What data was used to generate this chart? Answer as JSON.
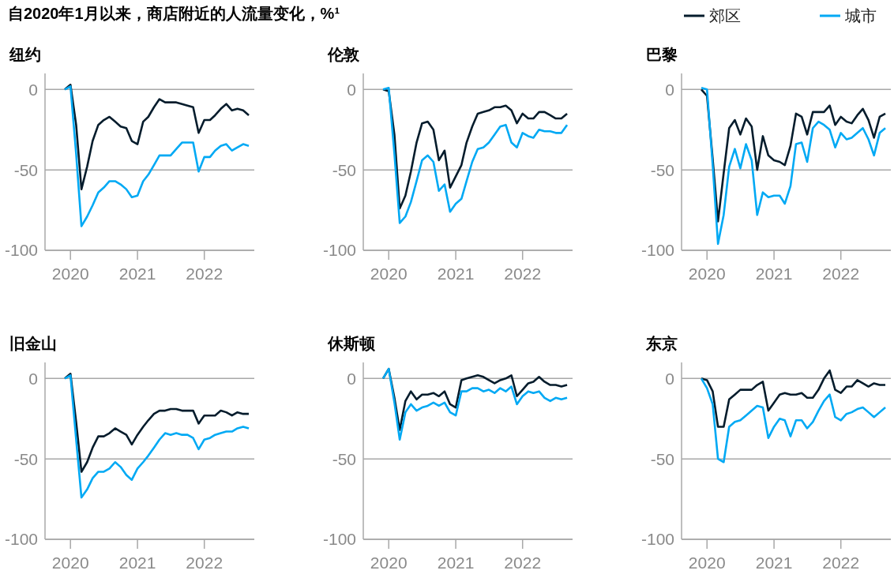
{
  "chart_data": [
    {
      "type": "other",
      "title": "自2020年1月以来，商店附近的人流量变化，%¹"
    },
    {
      "type": "line",
      "title": "纽约",
      "x": [
        "2019-12",
        "2020-01",
        "2020-02",
        "2020-03",
        "2020-04",
        "2020-05",
        "2020-06",
        "2020-07",
        "2020-08",
        "2020-09",
        "2020-10",
        "2020-11",
        "2020-12",
        "2021-01",
        "2021-02",
        "2021-03",
        "2021-04",
        "2021-05",
        "2021-06",
        "2021-07",
        "2021-08",
        "2021-09",
        "2021-10",
        "2021-11",
        "2021-12",
        "2022-01",
        "2022-02",
        "2022-03",
        "2022-04",
        "2022-05",
        "2022-06",
        "2022-07",
        "2022-08",
        "2022-09"
      ],
      "xlim": [
        "2019-08-15",
        "2022-10-01"
      ],
      "xticks": [
        "2020",
        "2021",
        "2022"
      ],
      "ylim": [
        -100,
        10
      ],
      "yticks": [
        0,
        -50,
        -100
      ],
      "grid": "y",
      "series": [
        {
          "color": "#051c2c",
          "values": [
            0,
            3,
            -22,
            -62,
            -48,
            -32,
            -22,
            -19,
            -17,
            -20,
            -23,
            -24,
            -32,
            -34,
            -20,
            -17,
            -11,
            -6,
            -8,
            -8,
            -8,
            -9,
            -10,
            -11,
            -27,
            -19,
            -19,
            -16,
            -12,
            -9,
            -13,
            -12,
            -13,
            -16
          ]
        },
        {
          "color": "#00a9f4",
          "values": [
            0,
            2,
            -40,
            -85,
            -79,
            -72,
            -64,
            -61,
            -57,
            -57,
            -59,
            -62,
            -67,
            -66,
            -57,
            -53,
            -47,
            -41,
            -41,
            -41,
            -37,
            -33,
            -33,
            -33,
            -51,
            -42,
            -42,
            -38,
            -35,
            -34,
            -38,
            -36,
            -34,
            -35
          ]
        }
      ]
    },
    {
      "type": "line",
      "title": "伦敦",
      "x": [
        "2019-12",
        "2020-01",
        "2020-02",
        "2020-03",
        "2020-04",
        "2020-05",
        "2020-06",
        "2020-07",
        "2020-08",
        "2020-09",
        "2020-10",
        "2020-11",
        "2020-12",
        "2021-01",
        "2021-02",
        "2021-03",
        "2021-04",
        "2021-05",
        "2021-06",
        "2021-07",
        "2021-08",
        "2021-09",
        "2021-10",
        "2021-11",
        "2021-12",
        "2022-01",
        "2022-02",
        "2022-03",
        "2022-04",
        "2022-05",
        "2022-06",
        "2022-07",
        "2022-08",
        "2022-09"
      ],
      "xlim": [
        "2019-08-15",
        "2022-10-01"
      ],
      "xticks": [
        "2020",
        "2021",
        "2022"
      ],
      "ylim": [
        -100,
        10
      ],
      "yticks": [
        0,
        -50,
        -100
      ],
      "grid": "y",
      "series": [
        {
          "color": "#051c2c",
          "values": [
            0,
            -1,
            -28,
            -74,
            -66,
            -51,
            -33,
            -21,
            -20,
            -25,
            -44,
            -38,
            -61,
            -54,
            -47,
            -33,
            -23,
            -15,
            -14,
            -13,
            -11,
            -11,
            -10,
            -13,
            -21,
            -15,
            -18,
            -18,
            -14,
            -14,
            -16,
            -18,
            -18,
            -15
          ]
        },
        {
          "color": "#00a9f4",
          "values": [
            0,
            1,
            -40,
            -83,
            -79,
            -70,
            -57,
            -44,
            -41,
            -45,
            -63,
            -59,
            -76,
            -71,
            -68,
            -57,
            -45,
            -37,
            -36,
            -33,
            -28,
            -23,
            -22,
            -33,
            -36,
            -27,
            -29,
            -30,
            -25,
            -26,
            -26,
            -27,
            -27,
            -22
          ]
        }
      ]
    },
    {
      "type": "line",
      "title": "巴黎",
      "legend": "top right",
      "x": [
        "2019-12",
        "2020-01",
        "2020-02",
        "2020-03",
        "2020-04",
        "2020-05",
        "2020-06",
        "2020-07",
        "2020-08",
        "2020-09",
        "2020-10",
        "2020-11",
        "2020-12",
        "2021-01",
        "2021-02",
        "2021-03",
        "2021-04",
        "2021-05",
        "2021-06",
        "2021-07",
        "2021-08",
        "2021-09",
        "2021-10",
        "2021-11",
        "2021-12",
        "2022-01",
        "2022-02",
        "2022-03",
        "2022-04",
        "2022-05",
        "2022-06",
        "2022-07",
        "2022-08",
        "2022-09"
      ],
      "xlim": [
        "2019-08-15",
        "2022-10-01"
      ],
      "xticks": [
        "2020",
        "2021",
        "2022"
      ],
      "ylim": [
        -100,
        10
      ],
      "yticks": [
        0,
        -50,
        -100
      ],
      "grid": "y",
      "series": [
        {
          "name": "郊区",
          "color": "#051c2c",
          "values": [
            0,
            -4,
            -43,
            -82,
            -52,
            -24,
            -19,
            -28,
            -18,
            -23,
            -50,
            -29,
            -41,
            -44,
            -45,
            -47,
            -35,
            -15,
            -17,
            -28,
            -14,
            -14,
            -14,
            -10,
            -22,
            -17,
            -20,
            -21,
            -16,
            -12,
            -19,
            -30,
            -17,
            -15
          ]
        },
        {
          "name": "城市",
          "color": "#00a9f4",
          "values": [
            1,
            0,
            -47,
            -96,
            -78,
            -48,
            -37,
            -49,
            -34,
            -44,
            -78,
            -64,
            -67,
            -66,
            -66,
            -71,
            -60,
            -34,
            -33,
            -45,
            -24,
            -20,
            -22,
            -25,
            -36,
            -27,
            -31,
            -30,
            -27,
            -24,
            -31,
            -41,
            -27,
            -24
          ]
        }
      ]
    },
    {
      "type": "line",
      "title": "旧金山",
      "x": [
        "2019-12",
        "2020-01",
        "2020-02",
        "2020-03",
        "2020-04",
        "2020-05",
        "2020-06",
        "2020-07",
        "2020-08",
        "2020-09",
        "2020-10",
        "2020-11",
        "2020-12",
        "2021-01",
        "2021-02",
        "2021-03",
        "2021-04",
        "2021-05",
        "2021-06",
        "2021-07",
        "2021-08",
        "2021-09",
        "2021-10",
        "2021-11",
        "2021-12",
        "2022-01",
        "2022-02",
        "2022-03",
        "2022-04",
        "2022-05",
        "2022-06",
        "2022-07",
        "2022-08",
        "2022-09"
      ],
      "xlim": [
        "2019-08-15",
        "2022-10-01"
      ],
      "xticks": [
        "2020",
        "2021",
        "2022"
      ],
      "ylim": [
        -100,
        10
      ],
      "yticks": [
        0,
        -50,
        -100
      ],
      "grid": "y",
      "series": [
        {
          "color": "#051c2c",
          "values": [
            0,
            3,
            -27,
            -58,
            -52,
            -43,
            -36,
            -36,
            -34,
            -31,
            -33,
            -35,
            -41,
            -35,
            -30,
            -26,
            -22,
            -20,
            -20,
            -19,
            -19,
            -20,
            -20,
            -20,
            -28,
            -23,
            -23,
            -23,
            -20,
            -21,
            -23,
            -21,
            -22,
            -22
          ]
        },
        {
          "color": "#00a9f4",
          "values": [
            0,
            2,
            -38,
            -74,
            -69,
            -62,
            -58,
            -58,
            -56,
            -52,
            -55,
            -60,
            -63,
            -56,
            -52,
            -48,
            -43,
            -38,
            -34,
            -35,
            -34,
            -35,
            -35,
            -37,
            -44,
            -38,
            -37,
            -35,
            -34,
            -33,
            -33,
            -31,
            -30,
            -31
          ]
        }
      ]
    },
    {
      "type": "line",
      "title": "休斯顿",
      "x": [
        "2019-12",
        "2020-01",
        "2020-02",
        "2020-03",
        "2020-04",
        "2020-05",
        "2020-06",
        "2020-07",
        "2020-08",
        "2020-09",
        "2020-10",
        "2020-11",
        "2020-12",
        "2021-01",
        "2021-02",
        "2021-03",
        "2021-04",
        "2021-05",
        "2021-06",
        "2021-07",
        "2021-08",
        "2021-09",
        "2021-10",
        "2021-11",
        "2021-12",
        "2022-01",
        "2022-02",
        "2022-03",
        "2022-04",
        "2022-05",
        "2022-06",
        "2022-07",
        "2022-08",
        "2022-09"
      ],
      "xlim": [
        "2019-08-15",
        "2022-10-01"
      ],
      "xticks": [
        "2020",
        "2021",
        "2022"
      ],
      "ylim": [
        -100,
        10
      ],
      "yticks": [
        0,
        -50,
        -100
      ],
      "grid": "y",
      "series": [
        {
          "color": "#051c2c",
          "values": [
            0,
            6,
            -12,
            -32,
            -14,
            -8,
            -13,
            -10,
            -10,
            -9,
            -11,
            -8,
            -16,
            -18,
            -1,
            0,
            1,
            2,
            1,
            -1,
            -3,
            -1,
            0,
            2,
            -11,
            -7,
            -3,
            -2,
            1,
            -2,
            -4,
            -4,
            -5,
            -4
          ]
        },
        {
          "color": "#00a9f4",
          "values": [
            0,
            6,
            -15,
            -38,
            -21,
            -16,
            -20,
            -18,
            -17,
            -15,
            -17,
            -15,
            -21,
            -23,
            -8,
            -8,
            -6,
            -6,
            -8,
            -7,
            -9,
            -6,
            -8,
            -5,
            -16,
            -11,
            -8,
            -9,
            -8,
            -12,
            -14,
            -12,
            -13,
            -12
          ]
        }
      ]
    },
    {
      "type": "line",
      "title": "东京",
      "x": [
        "2019-12",
        "2020-01",
        "2020-02",
        "2020-03",
        "2020-04",
        "2020-05",
        "2020-06",
        "2020-07",
        "2020-08",
        "2020-09",
        "2020-10",
        "2020-11",
        "2020-12",
        "2021-01",
        "2021-02",
        "2021-03",
        "2021-04",
        "2021-05",
        "2021-06",
        "2021-07",
        "2021-08",
        "2021-09",
        "2021-10",
        "2021-11",
        "2021-12",
        "2022-01",
        "2022-02",
        "2022-03",
        "2022-04",
        "2022-05",
        "2022-06",
        "2022-07",
        "2022-08",
        "2022-09"
      ],
      "xlim": [
        "2019-08-15",
        "2022-10-01"
      ],
      "xticks": [
        "2020",
        "2021",
        "2022"
      ],
      "ylim": [
        -100,
        10
      ],
      "yticks": [
        0,
        -50,
        -100
      ],
      "grid": "y",
      "series": [
        {
          "color": "#051c2c",
          "values": [
            0,
            -1,
            -8,
            -30,
            -30,
            -13,
            -10,
            -7,
            -7,
            -7,
            -4,
            -2,
            -20,
            -15,
            -10,
            -9,
            -10,
            -10,
            -9,
            -12,
            -12,
            -7,
            0,
            5,
            -7,
            -9,
            -5,
            -5,
            -1,
            -3,
            -5,
            -3,
            -4,
            -4
          ]
        },
        {
          "color": "#00a9f4",
          "values": [
            0,
            -6,
            -16,
            -50,
            -52,
            -30,
            -27,
            -26,
            -23,
            -20,
            -17,
            -18,
            -37,
            -30,
            -25,
            -26,
            -36,
            -26,
            -26,
            -31,
            -27,
            -20,
            -14,
            -10,
            -24,
            -26,
            -22,
            -21,
            -19,
            -18,
            -21,
            -24,
            -21,
            -18
          ]
        }
      ]
    }
  ]
}
